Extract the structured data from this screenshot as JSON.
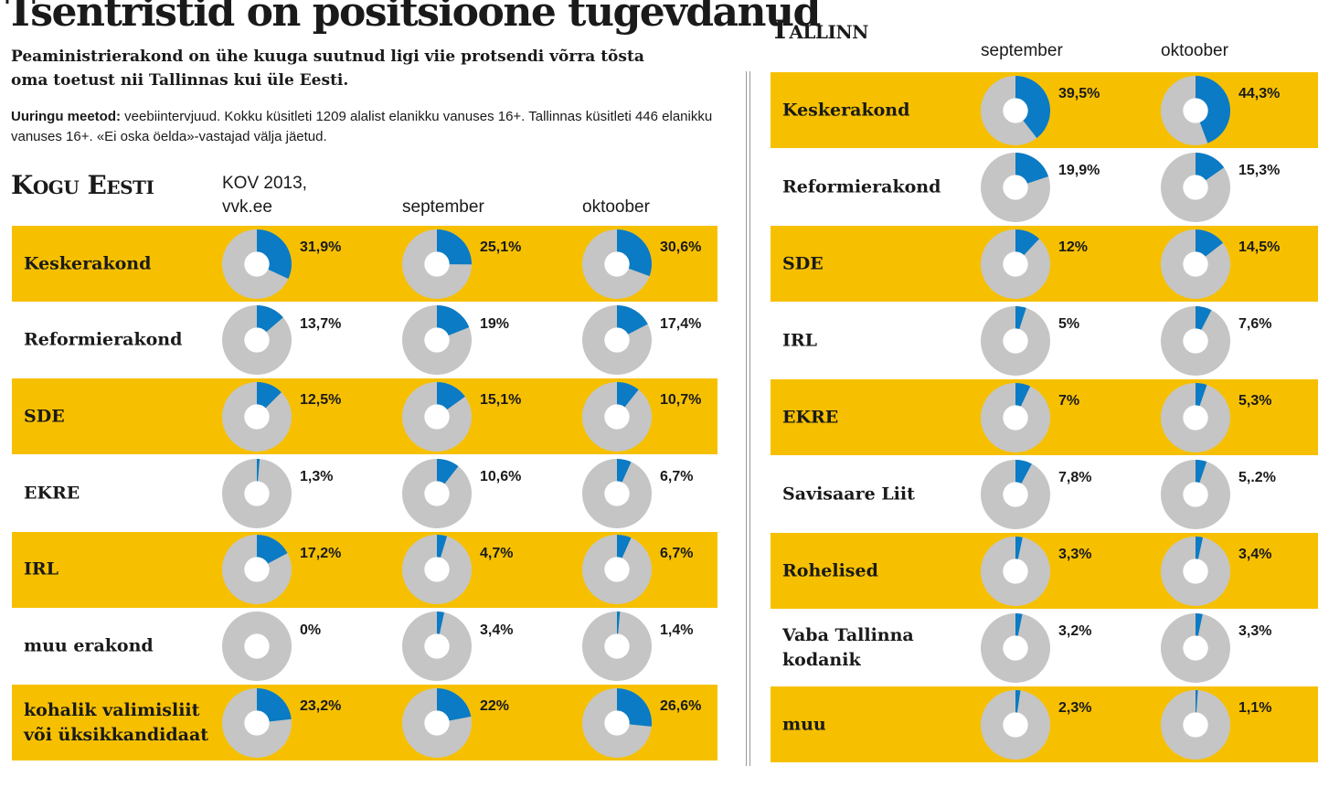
{
  "title": "Tsentristid on positsioone tugevdanud",
  "subtitle": "Peaministrierakond on ühe kuuga suutnud ligi viie protsendi võrra tõsta oma toetust nii Tallinnas kui üle Eesti.",
  "method": {
    "label": "Uuringu meetod:",
    "text": " veebiintervjuud. Kokku küsitleti 1209 alalist elanikku vanuses 16+. Tallinnas küsitleti 446 elanikku vanuses 16+. «Ei oska öelda»-vastajad välja jäetud."
  },
  "colors": {
    "accent": "#0a7bc4",
    "rest": "#c5c5c5",
    "row": "#f6c000"
  },
  "chart_data": [
    {
      "type": "pie",
      "title": "Kogu Eesti",
      "columns": [
        {
          "label": "KOV 2013,\nvvk.ee"
        },
        {
          "label": "september"
        },
        {
          "label": "oktoober"
        }
      ],
      "rows": [
        {
          "party": "Keskerakond",
          "values": [
            31.9,
            25.1,
            30.6
          ],
          "labels": [
            "31,9%",
            "25,1%",
            "30,6%"
          ]
        },
        {
          "party": "Reformierakond",
          "values": [
            13.7,
            19,
            17.4
          ],
          "labels": [
            "13,7%",
            "19%",
            "17,4%"
          ]
        },
        {
          "party": "SDE",
          "values": [
            12.5,
            15.1,
            10.7
          ],
          "labels": [
            "12,5%",
            "15,1%",
            "10,7%"
          ]
        },
        {
          "party": "EKRE",
          "values": [
            1.3,
            10.6,
            6.7
          ],
          "labels": [
            "1,3%",
            "10,6%",
            "6,7%"
          ]
        },
        {
          "party": "IRL",
          "values": [
            17.2,
            4.7,
            6.7
          ],
          "labels": [
            "17,2%",
            "4,7%",
            "6,7%"
          ]
        },
        {
          "party": "muu erakond",
          "values": [
            0,
            3.4,
            1.4
          ],
          "labels": [
            "0%",
            "3,4%",
            "1,4%"
          ]
        },
        {
          "party": "kohalik valimisliit\nvõi üksikkandidaat",
          "values": [
            23.2,
            22,
            26.6
          ],
          "labels": [
            "23,2%",
            "22%",
            "26,6%"
          ]
        }
      ]
    },
    {
      "type": "pie",
      "title": "Tallinn",
      "columns": [
        {
          "label": "september"
        },
        {
          "label": "oktoober"
        }
      ],
      "rows": [
        {
          "party": "Keskerakond",
          "values": [
            39.5,
            44.3
          ],
          "labels": [
            "39,5%",
            "44,3%"
          ]
        },
        {
          "party": "Reformierakond",
          "values": [
            19.9,
            15.3
          ],
          "labels": [
            "19,9%",
            "15,3%"
          ]
        },
        {
          "party": "SDE",
          "values": [
            12,
            14.5
          ],
          "labels": [
            "12%",
            "14,5%"
          ]
        },
        {
          "party": "IRL",
          "values": [
            5,
            7.6
          ],
          "labels": [
            "5%",
            "7,6%"
          ]
        },
        {
          "party": "EKRE",
          "values": [
            7,
            5.3
          ],
          "labels": [
            "7%",
            "5,3%"
          ]
        },
        {
          "party": "Savisaare Liit",
          "values": [
            7.8,
            5.2
          ],
          "labels": [
            "7,8%",
            "5,.2%"
          ]
        },
        {
          "party": "Rohelised",
          "values": [
            3.3,
            3.4
          ],
          "labels": [
            "3,3%",
            "3,4%"
          ]
        },
        {
          "party": "Vaba Tallinna\nkodanik",
          "values": [
            3.2,
            3.3
          ],
          "labels": [
            "3,2%",
            "3,3%"
          ]
        },
        {
          "party": "muu",
          "values": [
            2.3,
            1.1
          ],
          "labels": [
            "2,3%",
            "1,1%"
          ]
        }
      ]
    }
  ]
}
